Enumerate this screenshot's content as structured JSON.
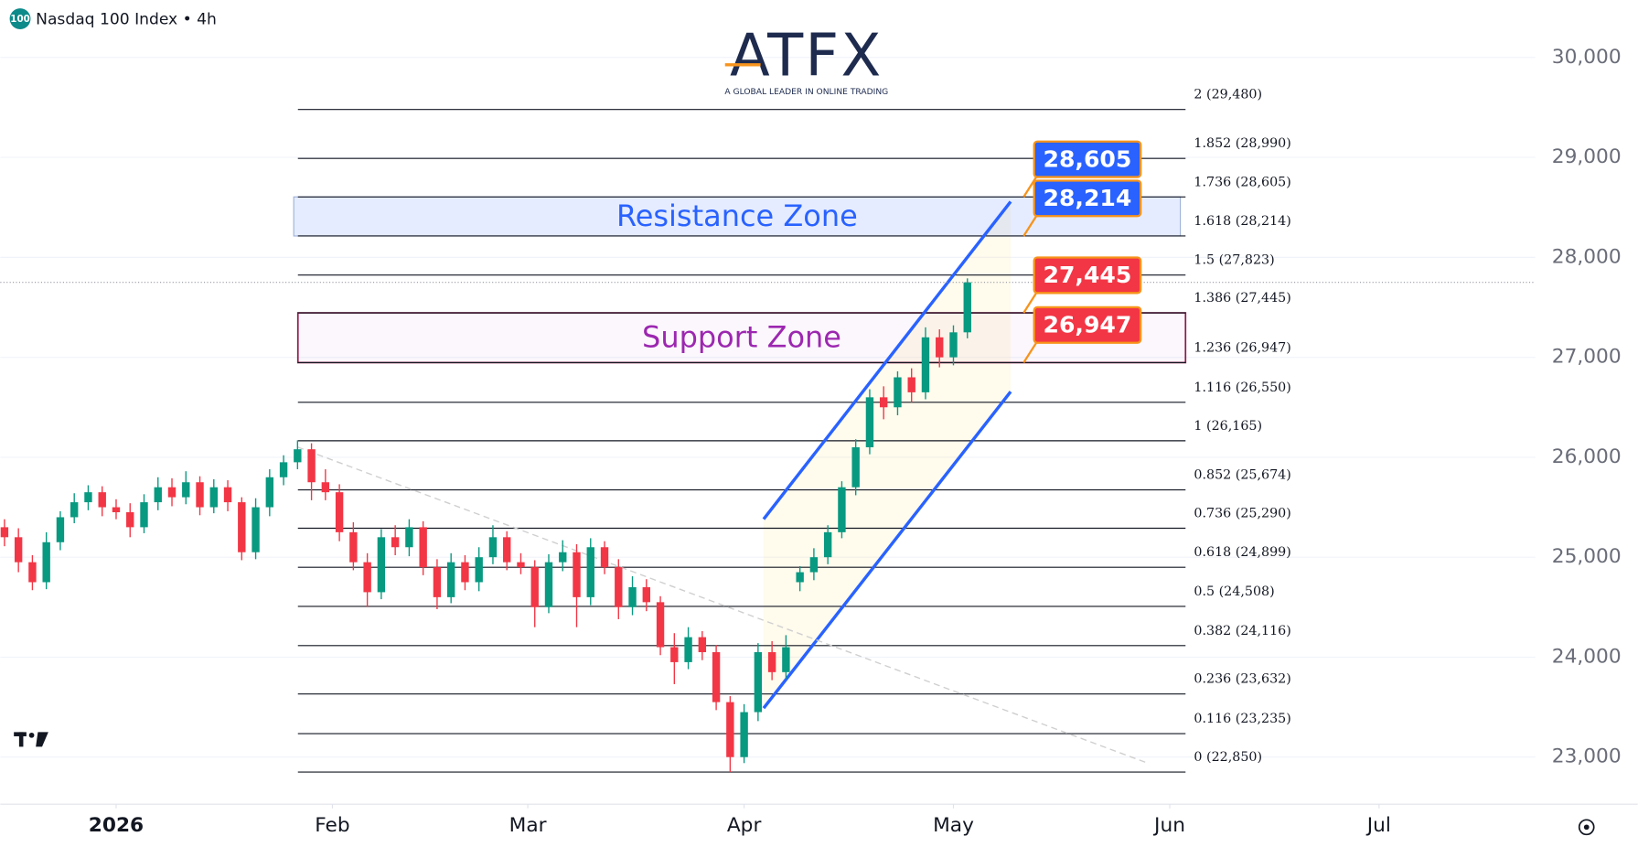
{
  "header": {
    "badge": "100",
    "title": "Nasdaq 100 Index • 4h"
  },
  "logo": {
    "name": "ATFX",
    "tagline": "A GLOBAL LEADER IN ONLINE TRADING"
  },
  "chart_data": {
    "type": "candlestick",
    "x": [
      -15,
      -13,
      -11,
      -9,
      -7,
      -5,
      -3,
      -1,
      1,
      3,
      5,
      7,
      9,
      11,
      13,
      15,
      17,
      19,
      21,
      23,
      25,
      27,
      29,
      31,
      33,
      35,
      37,
      39,
      41,
      43,
      45,
      47,
      49,
      51,
      53,
      55,
      57,
      59,
      61,
      63,
      65,
      67,
      69,
      71,
      73,
      75,
      77,
      79,
      81,
      83,
      85,
      87,
      89,
      91,
      93,
      95,
      97,
      99,
      101,
      103,
      105,
      107,
      109,
      111,
      113,
      115,
      117,
      119,
      121,
      123
    ],
    "open": [
      25300,
      25200,
      24950,
      24750,
      25150,
      25400,
      25550,
      25650,
      25500,
      25450,
      25300,
      25550,
      25700,
      25600,
      25750,
      25500,
      25700,
      25550,
      25050,
      25500,
      25800,
      25950,
      26080,
      25750,
      25650,
      25250,
      24950,
      24650,
      25200,
      25100,
      25300,
      24900,
      24600,
      24950,
      24750,
      25000,
      25200,
      24950,
      24900,
      24500,
      24950,
      25050,
      24600,
      25100,
      24900,
      24500,
      24700,
      24550,
      24100,
      23950,
      24200,
      24050,
      23550,
      23000,
      23450,
      24050,
      23850,
      24750,
      24850,
      25000,
      25250,
      25700,
      26100,
      26600,
      26500,
      26800,
      26650,
      27200,
      27000,
      27250
    ],
    "high": [
      25380,
      25290,
      25020,
      25250,
      25460,
      25640,
      25720,
      25710,
      25580,
      25540,
      25630,
      25800,
      25790,
      25860,
      25810,
      25780,
      25770,
      25600,
      25590,
      25880,
      26020,
      26170,
      26140,
      25880,
      25730,
      25350,
      25040,
      25280,
      25320,
      25380,
      25360,
      24980,
      25040,
      25020,
      25100,
      25320,
      25260,
      25040,
      24970,
      25030,
      25170,
      25130,
      25190,
      25160,
      24980,
      24810,
      24780,
      24610,
      24240,
      24300,
      24260,
      24120,
      23610,
      23530,
      24140,
      24160,
      24220,
      24910,
      25090,
      25320,
      25760,
      26180,
      26680,
      26710,
      26860,
      26890,
      27300,
      27280,
      27320,
      27790
    ],
    "low": [
      25110,
      24850,
      24670,
      24680,
      25070,
      25340,
      25470,
      25410,
      25380,
      25200,
      25240,
      25470,
      25510,
      25530,
      25420,
      25440,
      25460,
      24970,
      24980,
      25410,
      25720,
      25880,
      25570,
      25570,
      25160,
      24870,
      24500,
      24580,
      25020,
      25010,
      24820,
      24480,
      24540,
      24670,
      24660,
      24930,
      24870,
      24830,
      24300,
      24440,
      24860,
      24300,
      24520,
      24830,
      24380,
      24420,
      24460,
      24020,
      23730,
      23880,
      23970,
      23470,
      22850,
      22940,
      23360,
      23770,
      23780,
      24660,
      24770,
      24930,
      25190,
      25620,
      26030,
      26380,
      26420,
      26550,
      26580,
      26900,
      26920,
      27190
    ],
    "close": [
      25200,
      24950,
      24750,
      25150,
      25400,
      25550,
      25650,
      25500,
      25450,
      25300,
      25550,
      25700,
      25600,
      25750,
      25500,
      25700,
      25550,
      25050,
      25500,
      25800,
      25950,
      26080,
      25750,
      25650,
      25250,
      24950,
      24650,
      25200,
      25100,
      25300,
      24900,
      24600,
      24950,
      24750,
      25000,
      25200,
      24950,
      24900,
      24500,
      24950,
      25050,
      24600,
      25100,
      24900,
      24500,
      24700,
      24550,
      24100,
      23950,
      24200,
      24050,
      23550,
      23000,
      23450,
      24050,
      23850,
      24100,
      24850,
      25000,
      25250,
      25700,
      26100,
      26600,
      26500,
      26800,
      26650,
      27200,
      27000,
      27250,
      27750
    ],
    "up_color": "#089981",
    "down_color": "#f23645",
    "xlim": [
      -15.6,
      204.4
    ],
    "xticks": [
      {
        "value": 1,
        "label": "2026"
      },
      {
        "value": 32,
        "label": "Feb"
      },
      {
        "value": 60,
        "label": "Mar"
      },
      {
        "value": 91,
        "label": "Apr"
      },
      {
        "value": 121,
        "label": "May"
      },
      {
        "value": 152,
        "label": "Jun"
      },
      {
        "value": 182,
        "label": "Jul"
      }
    ],
    "ylim": [
      22529,
      30575
    ],
    "yticks": [
      {
        "value": 23000,
        "label": "23,000"
      },
      {
        "value": 24000,
        "label": "24,000"
      },
      {
        "value": 25000,
        "label": "25,000"
      },
      {
        "value": 26000,
        "label": "26,000"
      },
      {
        "value": 27000,
        "label": "27,000"
      },
      {
        "value": 28000,
        "label": "28,000"
      },
      {
        "value": 29000,
        "label": "29,000"
      },
      {
        "value": 30000,
        "label": "30,000"
      }
    ],
    "grid": true,
    "fib_levels": [
      {
        "value": 22850,
        "label": "0 (22,850)"
      },
      {
        "value": 23235,
        "label": "0.116 (23,235)"
      },
      {
        "value": 23632,
        "label": "0.236 (23,632)"
      },
      {
        "value": 24116,
        "label": "0.382 (24,116)"
      },
      {
        "value": 24508,
        "label": "0.5 (24,508)"
      },
      {
        "value": 24899,
        "label": "0.618 (24,899)"
      },
      {
        "value": 25290,
        "label": "0.736 (25,290)"
      },
      {
        "value": 25674,
        "label": "0.852 (25,674)"
      },
      {
        "value": 26165,
        "label": "1 (26,165)"
      },
      {
        "value": 26550,
        "label": "1.116 (26,550)"
      },
      {
        "value": 26947,
        "label": "1.236 (26,947)"
      },
      {
        "value": 27445,
        "label": "1.386 (27,445)"
      },
      {
        "value": 27823,
        "label": "1.5 (27,823)"
      },
      {
        "value": 28214,
        "label": "1.618 (28,214)"
      },
      {
        "value": 28605,
        "label": "1.736 (28,605)"
      },
      {
        "value": 28990,
        "label": "1.852 (28,990)"
      },
      {
        "value": 29480,
        "label": "2 (29,480)"
      }
    ],
    "zones": [
      {
        "label": "Resistance Zone",
        "from": 28214,
        "to": 28605,
        "color": "#2962ff"
      },
      {
        "label": "Support Zone",
        "from": 26947,
        "to": 27445,
        "color": "#9c27b0"
      }
    ],
    "price_tags": [
      {
        "value": 28605,
        "label": "28,605",
        "color": "#2962ff"
      },
      {
        "value": 28214,
        "label": "28,214",
        "color": "#2962ff"
      },
      {
        "value": 27445,
        "label": "27,445",
        "color": "#f23645"
      },
      {
        "value": 26947,
        "label": "26,947",
        "color": "#f23645"
      }
    ],
    "trendlines": [
      {
        "x": [
          93.8,
          129.2
        ],
        "y": [
          25381,
          28558
        ],
        "color": "#2962ff"
      },
      {
        "x": [
          93.8,
          129.2
        ],
        "y": [
          23490,
          26656
        ],
        "color": "#2962ff"
      },
      {
        "x": [
          27,
          148.6
        ],
        "y": [
          26102,
          22946
        ],
        "color": "#cfcfcf"
      }
    ]
  }
}
